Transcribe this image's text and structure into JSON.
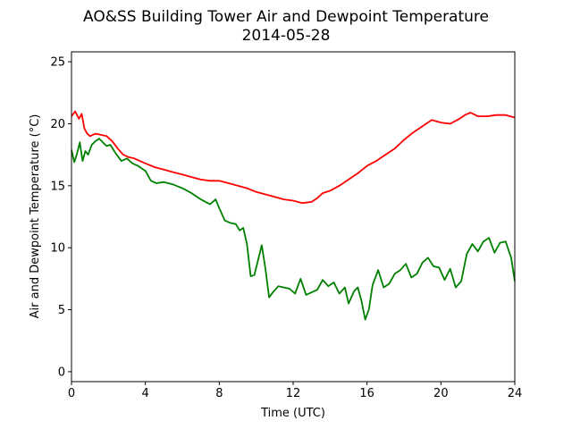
{
  "chart_data": {
    "type": "line",
    "title": "AO&SS Building Tower Air and Dewpoint Temperature",
    "subtitle": "2014-05-28",
    "xlabel": "Time (UTC)",
    "ylabel": "Air and Dewpoint Temperature (°C)",
    "xlim": [
      0,
      24
    ],
    "ylim": [
      -0.8,
      25.8
    ],
    "xticks": [
      0,
      4,
      8,
      12,
      16,
      20,
      24
    ],
    "yticks": [
      0,
      5,
      10,
      15,
      20,
      25
    ],
    "grid": false,
    "legend": "none",
    "series": [
      {
        "color": "#ff0000",
        "x": [
          0,
          0.2,
          0.4,
          0.55,
          0.7,
          0.85,
          1.0,
          1.3,
          1.6,
          1.9,
          2.2,
          2.5,
          2.8,
          3.1,
          3.4,
          3.7,
          4.0,
          4.5,
          5.0,
          5.5,
          6.0,
          6.5,
          7.0,
          7.5,
          8.0,
          8.5,
          9.0,
          9.5,
          10.0,
          10.5,
          11.0,
          11.5,
          12.0,
          12.5,
          13.0,
          13.3,
          13.6,
          14.0,
          14.5,
          15.0,
          15.5,
          16.0,
          16.5,
          17.0,
          17.5,
          18.0,
          18.5,
          19.0,
          19.5,
          20.0,
          20.5,
          21.0,
          21.3,
          21.6,
          22.0,
          22.5,
          23.0,
          23.5,
          24.0
        ],
        "values": [
          20.6,
          21.0,
          20.4,
          20.8,
          19.6,
          19.2,
          19.0,
          19.2,
          19.1,
          19.0,
          18.6,
          18.0,
          17.5,
          17.3,
          17.2,
          17.0,
          16.8,
          16.5,
          16.3,
          16.1,
          15.9,
          15.7,
          15.5,
          15.4,
          15.4,
          15.2,
          15.0,
          14.8,
          14.5,
          14.3,
          14.1,
          13.9,
          13.8,
          13.6,
          13.7,
          14.0,
          14.4,
          14.6,
          15.0,
          15.5,
          16.0,
          16.6,
          17.0,
          17.5,
          18.0,
          18.7,
          19.3,
          19.8,
          20.3,
          20.1,
          20.0,
          20.4,
          20.7,
          20.9,
          20.6,
          20.6,
          20.7,
          20.7,
          20.5
        ]
      },
      {
        "color": "#008000",
        "x": [
          0,
          0.15,
          0.3,
          0.45,
          0.6,
          0.75,
          0.9,
          1.1,
          1.3,
          1.5,
          1.7,
          1.9,
          2.1,
          2.4,
          2.7,
          3.0,
          3.3,
          3.6,
          4.0,
          4.3,
          4.6,
          5.0,
          5.5,
          6.0,
          6.5,
          7.0,
          7.5,
          7.8,
          8.0,
          8.3,
          8.6,
          8.9,
          9.1,
          9.3,
          9.5,
          9.7,
          9.9,
          10.1,
          10.3,
          10.5,
          10.7,
          10.9,
          11.2,
          11.5,
          11.8,
          12.1,
          12.4,
          12.7,
          13.0,
          13.3,
          13.6,
          13.9,
          14.2,
          14.5,
          14.8,
          15.0,
          15.3,
          15.5,
          15.7,
          15.9,
          16.1,
          16.3,
          16.6,
          16.9,
          17.2,
          17.5,
          17.8,
          18.1,
          18.4,
          18.7,
          19.0,
          19.3,
          19.6,
          19.9,
          20.2,
          20.5,
          20.8,
          21.1,
          21.4,
          21.7,
          22.0,
          22.3,
          22.6,
          22.9,
          23.2,
          23.5,
          23.8,
          24.0
        ],
        "values": [
          17.9,
          16.9,
          17.6,
          18.5,
          17.0,
          17.8,
          17.5,
          18.3,
          18.6,
          18.8,
          18.5,
          18.2,
          18.3,
          17.6,
          17.0,
          17.2,
          16.8,
          16.6,
          16.2,
          15.4,
          15.2,
          15.3,
          15.1,
          14.8,
          14.4,
          13.9,
          13.5,
          13.9,
          13.2,
          12.2,
          12.0,
          11.9,
          11.4,
          11.6,
          10.3,
          7.7,
          7.8,
          9.0,
          10.2,
          8.3,
          6.0,
          6.4,
          6.9,
          6.8,
          6.7,
          6.3,
          7.5,
          6.2,
          6.4,
          6.6,
          7.4,
          6.9,
          7.2,
          6.3,
          6.8,
          5.5,
          6.5,
          6.8,
          5.7,
          4.2,
          5.0,
          7.0,
          8.2,
          6.8,
          7.1,
          7.9,
          8.2,
          8.7,
          7.6,
          7.9,
          8.8,
          9.2,
          8.5,
          8.4,
          7.4,
          8.3,
          6.8,
          7.3,
          9.5,
          10.3,
          9.7,
          10.5,
          10.8,
          9.6,
          10.4,
          10.5,
          9.2,
          7.3
        ]
      }
    ]
  }
}
